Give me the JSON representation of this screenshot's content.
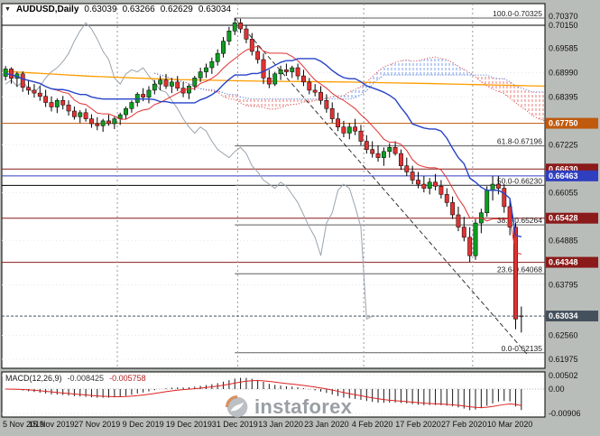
{
  "title": {
    "marker": "▼",
    "symbol": "AUDUSD,Daily",
    "open": "0.63039",
    "high": "0.63266",
    "low": "0.62629",
    "close": "0.63034"
  },
  "macd": {
    "label": "MACD(12,26,9)",
    "value_main": "-0.008425",
    "value_signal": "-0.005758"
  },
  "watermark": {
    "text": "instaforex"
  },
  "chart_data": {
    "type": "candlestick",
    "symbol": "AUDUSD",
    "timeframe": "Daily",
    "ohlc_current": {
      "open": 0.63039,
      "high": 0.63266,
      "low": 0.62629,
      "close": 0.63034
    },
    "y_range": {
      "top_price": 0.7037,
      "bottom_price": 0.61975
    },
    "candles": [
      [
        0.689,
        0.6915,
        0.688,
        0.6908
      ],
      [
        0.6908,
        0.6912,
        0.6872,
        0.6885
      ],
      [
        0.6885,
        0.6901,
        0.6864,
        0.6896
      ],
      [
        0.6896,
        0.6902,
        0.6852,
        0.6863
      ],
      [
        0.6863,
        0.688,
        0.6845,
        0.6856
      ],
      [
        0.6856,
        0.6871,
        0.6838,
        0.6849
      ],
      [
        0.6849,
        0.6866,
        0.683,
        0.6841
      ],
      [
        0.6841,
        0.6857,
        0.6815,
        0.6826
      ],
      [
        0.6826,
        0.6841,
        0.6804,
        0.6815
      ],
      [
        0.6815,
        0.6836,
        0.68,
        0.6831
      ],
      [
        0.6831,
        0.6842,
        0.6809,
        0.682
      ],
      [
        0.682,
        0.6831,
        0.6794,
        0.6805
      ],
      [
        0.6805,
        0.6816,
        0.6784,
        0.6791
      ],
      [
        0.6791,
        0.6807,
        0.6776,
        0.6801
      ],
      [
        0.6801,
        0.6811,
        0.6779,
        0.6786
      ],
      [
        0.6786,
        0.6797,
        0.6764,
        0.6774
      ],
      [
        0.6774,
        0.679,
        0.6758,
        0.6769
      ],
      [
        0.6769,
        0.6786,
        0.6754,
        0.6781
      ],
      [
        0.6781,
        0.6796,
        0.6769,
        0.6774
      ],
      [
        0.6774,
        0.6791,
        0.6761,
        0.6786
      ],
      [
        0.6786,
        0.6801,
        0.6771,
        0.6796
      ],
      [
        0.6796,
        0.6816,
        0.6786,
        0.6811
      ],
      [
        0.6811,
        0.6831,
        0.6801,
        0.6826
      ],
      [
        0.6826,
        0.6851,
        0.6816,
        0.6846
      ],
      [
        0.6846,
        0.6861,
        0.6829,
        0.6839
      ],
      [
        0.6839,
        0.6866,
        0.6824,
        0.6856
      ],
      [
        0.6856,
        0.6881,
        0.6846,
        0.6871
      ],
      [
        0.6871,
        0.6891,
        0.6856,
        0.6881
      ],
      [
        0.6881,
        0.6896,
        0.6859,
        0.6866
      ],
      [
        0.6866,
        0.6886,
        0.6849,
        0.6876
      ],
      [
        0.6876,
        0.6891,
        0.6854,
        0.6861
      ],
      [
        0.6861,
        0.6876,
        0.6839,
        0.6849
      ],
      [
        0.6849,
        0.6871,
        0.6834,
        0.6866
      ],
      [
        0.6866,
        0.6891,
        0.6856,
        0.6886
      ],
      [
        0.6886,
        0.6911,
        0.6876,
        0.6901
      ],
      [
        0.6901,
        0.6921,
        0.6886,
        0.6911
      ],
      [
        0.6911,
        0.6936,
        0.6896,
        0.6926
      ],
      [
        0.6926,
        0.6956,
        0.6916,
        0.6946
      ],
      [
        0.6946,
        0.6986,
        0.6936,
        0.6976
      ],
      [
        0.6976,
        0.7011,
        0.6966,
        0.7001
      ],
      [
        0.7001,
        0.70325,
        0.6991,
        0.7021
      ],
      [
        0.7021,
        0.7031,
        0.6996,
        0.7006
      ],
      [
        0.7006,
        0.7016,
        0.6971,
        0.6981
      ],
      [
        0.6981,
        0.6996,
        0.6941,
        0.6951
      ],
      [
        0.6951,
        0.6966,
        0.6921,
        0.6931
      ],
      [
        0.6931,
        0.6946,
        0.6871,
        0.6886
      ],
      [
        0.6886,
        0.6906,
        0.6861,
        0.6871
      ],
      [
        0.6871,
        0.6901,
        0.6866,
        0.6896
      ],
      [
        0.6896,
        0.6916,
        0.6881,
        0.6906
      ],
      [
        0.6906,
        0.6921,
        0.6891,
        0.6901
      ],
      [
        0.6901,
        0.6916,
        0.6886,
        0.6911
      ],
      [
        0.6911,
        0.6921,
        0.6881,
        0.6891
      ],
      [
        0.6891,
        0.6906,
        0.6866,
        0.6876
      ],
      [
        0.6876,
        0.6886,
        0.6846,
        0.6856
      ],
      [
        0.6856,
        0.6871,
        0.6841,
        0.6851
      ],
      [
        0.6851,
        0.6866,
        0.6821,
        0.6831
      ],
      [
        0.6831,
        0.6846,
        0.6801,
        0.6811
      ],
      [
        0.6811,
        0.6826,
        0.6776,
        0.6786
      ],
      [
        0.6786,
        0.6801,
        0.6756,
        0.6766
      ],
      [
        0.6766,
        0.6781,
        0.6741,
        0.6751
      ],
      [
        0.6751,
        0.6776,
        0.6736,
        0.6766
      ],
      [
        0.6766,
        0.6786,
        0.6746,
        0.6756
      ],
      [
        0.6756,
        0.6771,
        0.6721,
        0.6731
      ],
      [
        0.6731,
        0.6746,
        0.6701,
        0.6711
      ],
      [
        0.6711,
        0.6731,
        0.6691,
        0.6701
      ],
      [
        0.6701,
        0.6721,
        0.6681,
        0.6691
      ],
      [
        0.6691,
        0.6716,
        0.6671,
        0.6706
      ],
      [
        0.6706,
        0.6726,
        0.6691,
        0.6716
      ],
      [
        0.6716,
        0.6731,
        0.6696,
        0.6701
      ],
      [
        0.6701,
        0.6711,
        0.6661,
        0.6671
      ],
      [
        0.6671,
        0.6691,
        0.6646,
        0.6656
      ],
      [
        0.6656,
        0.6671,
        0.6626,
        0.6636
      ],
      [
        0.6636,
        0.6656,
        0.6616,
        0.6626
      ],
      [
        0.6626,
        0.6646,
        0.6606,
        0.6616
      ],
      [
        0.6616,
        0.6641,
        0.6601,
        0.6631
      ],
      [
        0.6631,
        0.6651,
        0.6611,
        0.6621
      ],
      [
        0.6621,
        0.6636,
        0.6591,
        0.6601
      ],
      [
        0.6601,
        0.6616,
        0.6571,
        0.6581
      ],
      [
        0.6581,
        0.6596,
        0.6541,
        0.6551
      ],
      [
        0.6551,
        0.6571,
        0.6511,
        0.6521
      ],
      [
        0.6521,
        0.6546,
        0.6486,
        0.6496
      ],
      [
        0.6496,
        0.6521,
        0.6436,
        0.6451
      ],
      [
        0.6451,
        0.6541,
        0.6441,
        0.6531
      ],
      [
        0.6531,
        0.6566,
        0.6506,
        0.6556
      ],
      [
        0.6556,
        0.6621,
        0.6546,
        0.6611
      ],
      [
        0.6611,
        0.66463,
        0.6586,
        0.6626
      ],
      [
        0.6626,
        0.6646,
        0.6601,
        0.6616
      ],
      [
        0.6616,
        0.6626,
        0.6556,
        0.6571
      ],
      [
        0.6571,
        0.6591,
        0.6501,
        0.6521
      ],
      [
        0.6521,
        0.6531,
        0.6271,
        0.6296
      ],
      [
        0.63039,
        0.63266,
        0.62629,
        0.63034
      ]
    ],
    "x_ticks": [
      {
        "i": 0,
        "label": "5 Nov 2019"
      },
      {
        "i": 8,
        "label": "15 Nov 2019"
      },
      {
        "i": 16,
        "label": "27 Nov 2019"
      },
      {
        "i": 24,
        "label": "9 Dec 2019"
      },
      {
        "i": 32,
        "label": "19 Dec 2019"
      },
      {
        "i": 40,
        "label": "31 Dec 2019"
      },
      {
        "i": 48,
        "label": "13 Jan 2020"
      },
      {
        "i": 56,
        "label": "23 Jan 2020"
      },
      {
        "i": 64,
        "label": "4 Feb 2020"
      },
      {
        "i": 72,
        "label": "17 Feb 2020"
      },
      {
        "i": 80,
        "label": "27 Feb 2020"
      },
      {
        "i": 88,
        "label": "10 Mar 2020"
      }
    ],
    "month_separators": [
      19.5,
      40.5,
      62.5,
      81.5
    ],
    "y_axis_plain_labels": [
      "0.70370",
      "0.70150",
      "0.69585",
      "0.68990",
      "0.68395",
      "0.67225",
      "0.66055",
      "0.64885",
      "0.63795",
      "0.62560",
      "0.61975"
    ],
    "hlines": [
      {
        "value": 0.7015,
        "label": "0.70150",
        "color": "#000000",
        "boxed": false
      },
      {
        "value": 0.6775,
        "label": "0.67750",
        "color": "#bf5a0e",
        "boxed": true
      },
      {
        "value": 0.6663,
        "label": "0.66630",
        "color": "#8b1a1a",
        "boxed": true
      },
      {
        "value": 0.66463,
        "label": "0.66463",
        "color": "#2f3fbf",
        "boxed": true
      },
      {
        "value": 0.6623,
        "label": "0.66230",
        "color": "#000000",
        "boxed": false
      },
      {
        "value": 0.65428,
        "label": "0.65428",
        "color": "#8b1a1a",
        "boxed": true
      },
      {
        "value": 0.64348,
        "label": "0.64348",
        "color": "#8b1a1a",
        "boxed": true
      }
    ],
    "current_price": {
      "value": 0.63034,
      "label": "0.63034",
      "color": "#44505c"
    },
    "fibonacci": {
      "anchor_index": 40,
      "levels": [
        {
          "label": "100.0-0.70325",
          "value": 0.70325
        },
        {
          "label": "61.8-0.67196",
          "value": 0.67196
        },
        {
          "label": "50.0-0.66230",
          "value": 0.6623
        },
        {
          "label": "38.2-0.65264",
          "value": 0.65264
        },
        {
          "label": "23.6-0.64068",
          "value": 0.64068
        },
        {
          "label": "0.0-0.62135",
          "value": 0.62135
        }
      ]
    },
    "trendline": {
      "from_index": 40,
      "from_price": 0.70325,
      "to_index": 91,
      "to_price": 0.621
    },
    "moving_average_keypoints": [
      [
        0,
        0.6902
      ],
      [
        15,
        0.689
      ],
      [
        30,
        0.6882
      ],
      [
        45,
        0.6878
      ],
      [
        60,
        0.6876
      ],
      [
        75,
        0.6872
      ],
      [
        94,
        0.6866
      ]
    ],
    "ichimoku": {
      "tenkan": 9,
      "kijun": 26,
      "senkou": 52,
      "shift": 26
    },
    "macd_settings": {
      "fast": 12,
      "slow": 26,
      "signal": 9
    },
    "macd_scale": {
      "top_value": 0.00502,
      "top_label": "0.00502",
      "zero_label": "0.00",
      "bottom_value": -0.00906,
      "bottom_label": "-0.00906"
    },
    "colors": {
      "bull": "#0f9b22",
      "bear": "#e03232",
      "wick": "#000000",
      "tenkan": "#e03030",
      "kijun": "#2743c9",
      "chikou": "#9aa4ad",
      "senkou_a": "#d84444",
      "senkou_b": "#3b6fd8",
      "cloud_bull": "#7b9ce8",
      "cloud_bear": "#e87b7b",
      "ma": "#ff9c00",
      "trend": "#333333",
      "separator": "#999999",
      "fibo": "#5e5e5e",
      "histogram": "#1a1a1a",
      "signal": "#dd2222"
    }
  }
}
